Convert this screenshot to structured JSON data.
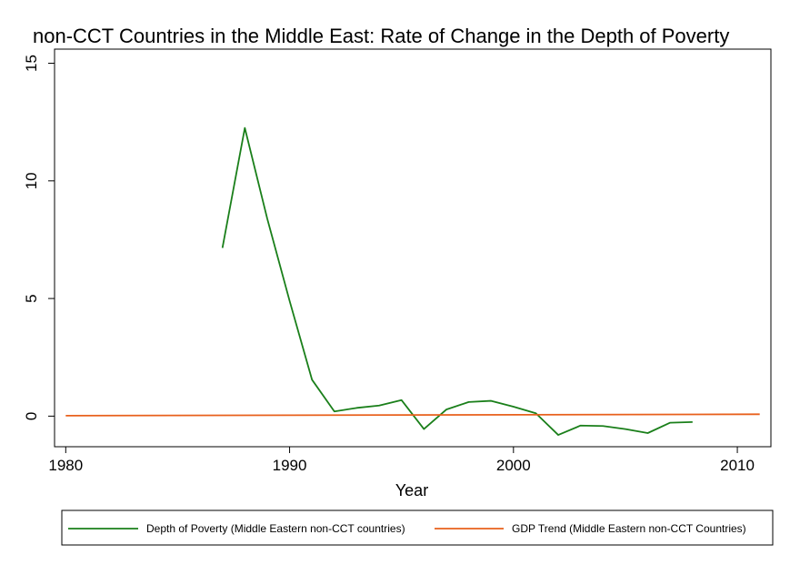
{
  "chart_data": {
    "type": "line",
    "title": "non-CCT Countries in the Middle East: Rate of Change in the Depth of Poverty",
    "xlabel": "Year",
    "ylabel": "",
    "xlim": [
      1979.5,
      2011.5
    ],
    "ylim": [
      -1.3,
      15.6
    ],
    "x_ticks": [
      1980,
      1990,
      2000,
      2010
    ],
    "y_ticks": [
      0,
      5,
      10,
      15
    ],
    "x_tick_labels": [
      "1980",
      "1990",
      "2000",
      "2010"
    ],
    "y_tick_labels": [
      "0",
      "5",
      "10",
      "15"
    ],
    "grid": false,
    "legend_position": "bottom",
    "series": [
      {
        "name": "Depth of Poverty (Middle Eastern non-CCT countries)",
        "color": "#1a7f1a",
        "points": [
          [
            1987,
            7.15
          ],
          [
            1988,
            12.25
          ],
          [
            1989,
            8.4
          ],
          [
            1990,
            4.9
          ],
          [
            1991,
            1.55
          ],
          [
            1992,
            0.2
          ],
          [
            1993,
            0.35
          ],
          [
            1994,
            0.45
          ],
          [
            1995,
            0.68
          ],
          [
            1996,
            -0.55
          ],
          [
            1997,
            0.28
          ],
          [
            1998,
            0.6
          ],
          [
            1999,
            0.65
          ],
          [
            2000,
            0.4
          ],
          [
            2001,
            0.12
          ],
          [
            2002,
            -0.8
          ],
          [
            2003,
            -0.4
          ],
          [
            2004,
            -0.42
          ],
          [
            2005,
            -0.55
          ],
          [
            2006,
            -0.72
          ],
          [
            2007,
            -0.28
          ],
          [
            2008,
            -0.25
          ]
        ]
      },
      {
        "name": "GDP Trend (Middle Eastern non-CCT Countries)",
        "color": "#e8601c",
        "points": [
          [
            1980,
            0.02
          ],
          [
            2011,
            0.08
          ]
        ]
      }
    ]
  }
}
